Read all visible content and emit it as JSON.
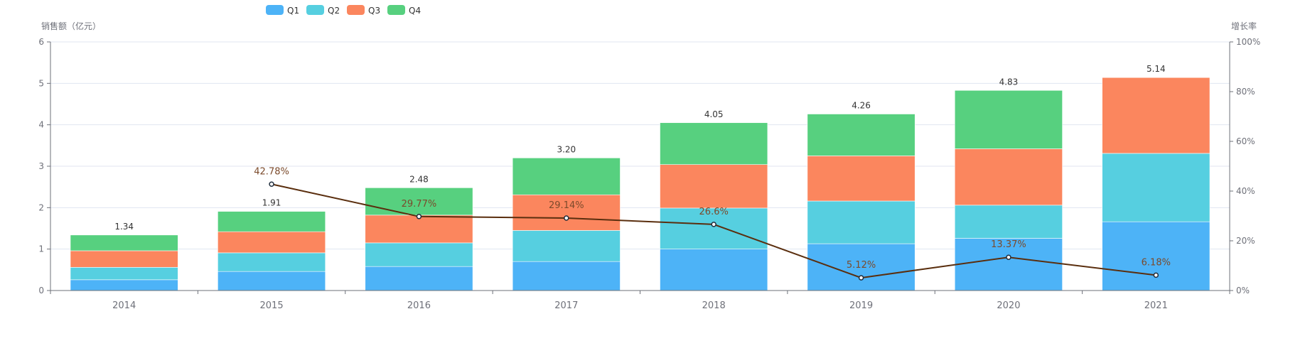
{
  "chart_data": {
    "type": "bar",
    "stacked": true,
    "categories": [
      "2014",
      "2015",
      "2016",
      "2017",
      "2018",
      "2019",
      "2020",
      "2021"
    ],
    "series": [
      {
        "name": "Q1",
        "color": "#4db3f7",
        "values": [
          0.26,
          0.46,
          0.58,
          0.7,
          1.0,
          1.13,
          1.26,
          1.66
        ]
      },
      {
        "name": "Q2",
        "color": "#56cfe0",
        "values": [
          0.3,
          0.45,
          0.57,
          0.75,
          0.99,
          1.03,
          0.8,
          1.65
        ]
      },
      {
        "name": "Q3",
        "color": "#fb865e",
        "values": [
          0.4,
          0.51,
          0.67,
          0.86,
          1.05,
          1.09,
          1.36,
          1.83
        ]
      },
      {
        "name": "Q4",
        "color": "#57d07f",
        "values": [
          0.38,
          0.49,
          0.66,
          0.89,
          1.01,
          1.01,
          1.41,
          null
        ]
      }
    ],
    "totals": [
      "1.34",
      "1.91",
      "2.48",
      "3.20",
      "4.05",
      "4.26",
      "4.83",
      "5.14"
    ],
    "line": {
      "name": "增长率",
      "color": "#5a2e0e",
      "label_color": "#7b4a2b",
      "values": [
        null,
        42.78,
        29.77,
        29.14,
        26.6,
        5.12,
        13.37,
        6.18
      ],
      "labels": [
        "",
        "42.78%",
        "29.77%",
        "29.14%",
        "26.6%",
        "5.12%",
        "13.37%",
        "6.18%"
      ]
    },
    "ylabel": "销售额（亿元）",
    "ylim": [
      0,
      6
    ],
    "yticks": [
      "0",
      "1",
      "2",
      "3",
      "4",
      "5",
      "6"
    ],
    "y2label": "增长率",
    "y2lim": [
      0,
      100
    ],
    "y2ticks": [
      "0%",
      "20%",
      "40%",
      "60%",
      "80%",
      "100%"
    ],
    "grid": true,
    "legend_position": "top-center"
  }
}
